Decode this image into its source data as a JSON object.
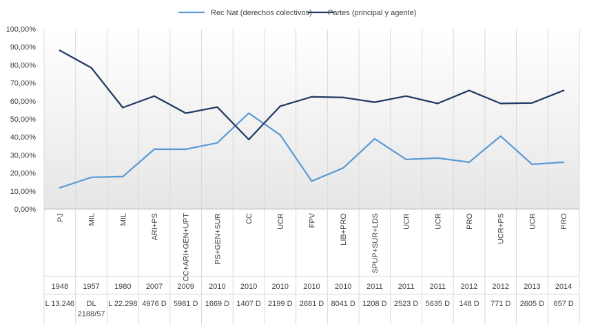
{
  "chart_data": {
    "type": "line",
    "title": "",
    "xlabel": "",
    "ylabel": "",
    "ylim": [
      0,
      100
    ],
    "yticks": [
      "0,00%",
      "10,00%",
      "20,00%",
      "30,00%",
      "40,00%",
      "50,00%",
      "60,00%",
      "70,00%",
      "80,00%",
      "90,00%",
      "100,00%"
    ],
    "legend_position": "top-center",
    "grid": "vertical",
    "categories": [
      {
        "party": "PJ",
        "year": "1948",
        "doc": "L 13.246"
      },
      {
        "party": "MIL",
        "year": "1957",
        "doc": "DL 2188/57"
      },
      {
        "party": "MIL",
        "year": "1980",
        "doc": "L 22.298"
      },
      {
        "party": "ARI+PS",
        "year": "2007",
        "doc": "4976 D"
      },
      {
        "party": "CC+ARI+GEN+UPT",
        "year": "2009",
        "doc": "5981 D"
      },
      {
        "party": "PS+GEN+SUR",
        "year": "2010",
        "doc": "1669 D"
      },
      {
        "party": "CC",
        "year": "2010",
        "doc": "1407 D"
      },
      {
        "party": "UCR",
        "year": "2010",
        "doc": "2199 D"
      },
      {
        "party": "FPV",
        "year": "2010",
        "doc": "2681 D"
      },
      {
        "party": "LIB+PRO",
        "year": "2010",
        "doc": "8041 D"
      },
      {
        "party": "SPUP+SUR+LDS",
        "year": "2011",
        "doc": "1208 D"
      },
      {
        "party": "UCR",
        "year": "2011",
        "doc": "2523 D"
      },
      {
        "party": "UCR",
        "year": "2011",
        "doc": "5635 D"
      },
      {
        "party": "PRO",
        "year": "2012",
        "doc": "148 D"
      },
      {
        "party": "UCR+PS",
        "year": "2012",
        "doc": "771 D"
      },
      {
        "party": "UCR",
        "year": "2013",
        "doc": "2605 D"
      },
      {
        "party": "PRO",
        "year": "2014",
        "doc": "657 D"
      }
    ],
    "series": [
      {
        "name": "Rec Nat (derechos colectivos)",
        "color": "#5b9bd5",
        "values": [
          11.8,
          17.6,
          18.0,
          33.2,
          33.2,
          36.7,
          53.2,
          41.1,
          15.5,
          22.8,
          39.0,
          27.5,
          28.3,
          26.0,
          40.5,
          24.8,
          26.0
        ]
      },
      {
        "name": "Partes (principal y agente)",
        "color": "#203864",
        "values": [
          88.0,
          78.4,
          56.3,
          62.7,
          53.2,
          56.6,
          38.6,
          57.1,
          62.3,
          61.9,
          59.3,
          62.7,
          58.6,
          65.8,
          58.6,
          58.9,
          65.8
        ]
      }
    ]
  }
}
